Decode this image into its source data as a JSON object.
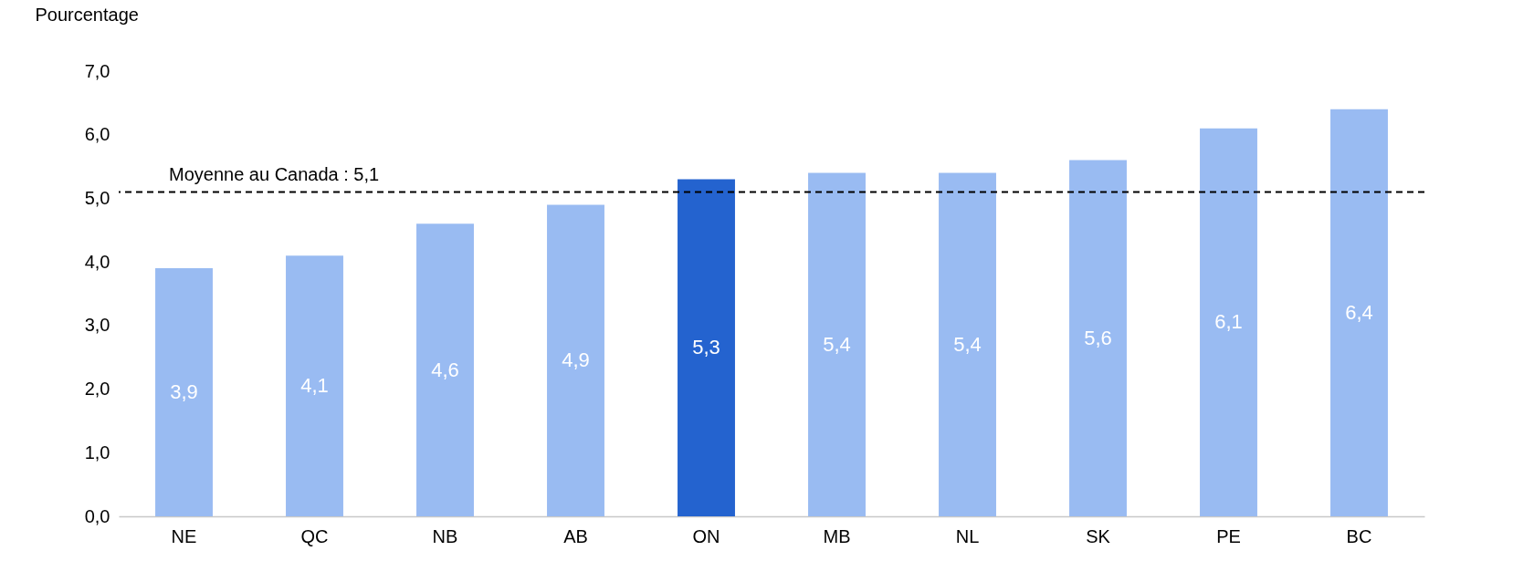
{
  "chart_data": {
    "type": "bar",
    "ylabel": "Pourcentage",
    "categories": [
      "NE",
      "QC",
      "NB",
      "AB",
      "ON",
      "MB",
      "NL",
      "SK",
      "PE",
      "BC"
    ],
    "values": [
      3.9,
      4.1,
      4.6,
      4.9,
      5.3,
      5.4,
      5.4,
      5.6,
      6.1,
      6.4
    ],
    "value_labels": [
      "3,9",
      "4,1",
      "4,6",
      "4,9",
      "5,3",
      "5,4",
      "5,4",
      "5,6",
      "6,1",
      "6,4"
    ],
    "colors": [
      "#99bbf2",
      "#99bbf2",
      "#99bbf2",
      "#99bbf2",
      "#2463cf",
      "#99bbf2",
      "#99bbf2",
      "#99bbf2",
      "#99bbf2",
      "#99bbf2"
    ],
    "ylim": [
      0,
      7
    ],
    "yticks": [
      {
        "value": 0,
        "label": "0,0"
      },
      {
        "value": 1,
        "label": "1,0"
      },
      {
        "value": 2,
        "label": "2,0"
      },
      {
        "value": 3,
        "label": "3,0"
      },
      {
        "value": 4,
        "label": "4,0"
      },
      {
        "value": 5,
        "label": "5,0"
      },
      {
        "value": 6,
        "label": "6,0"
      },
      {
        "value": 7,
        "label": "7,0"
      }
    ],
    "ref_lines": [
      {
        "axis": "y",
        "value": 5.1,
        "label": "Moyenne au Canada : 5,1",
        "line_style": "dashed",
        "color": "#000000"
      }
    ],
    "grid": false
  }
}
